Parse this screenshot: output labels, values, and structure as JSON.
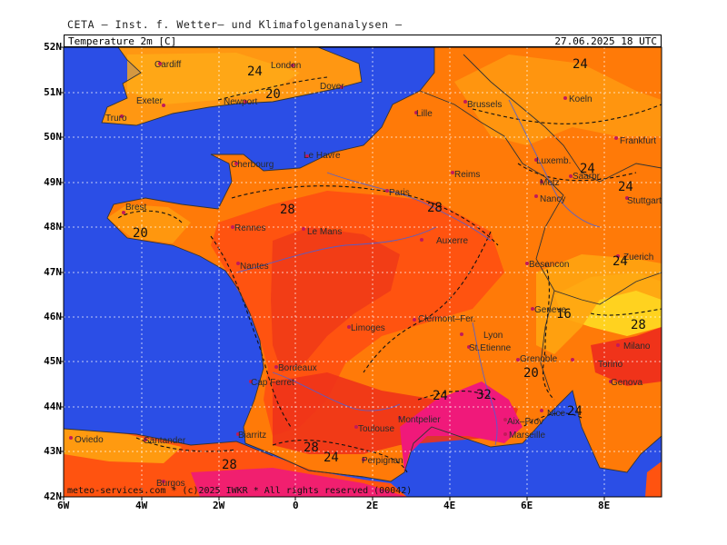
{
  "header": {
    "source": "CETA – Inst. f. Wetter– und Klimafolgenanalysen –",
    "field": "Temperature 2m [C]",
    "valid_time": "27.06.2025 18 UTC"
  },
  "axes": {
    "lat_labels": [
      "52N",
      "51N",
      "50N",
      "49N",
      "48N",
      "47N",
      "46N",
      "45N",
      "44N",
      "43N",
      "42N"
    ],
    "lon_labels": [
      "6W",
      "4W",
      "2W",
      "0",
      "2E",
      "4E",
      "6E",
      "8E"
    ]
  },
  "contour_labels": {
    "c24a": "24",
    "c20a": "20",
    "c24b": "24",
    "c24c": "24",
    "c24d": "24",
    "c28a": "28",
    "c28b": "28",
    "c20b": "20",
    "c24e": "24",
    "c16": "16",
    "c28c": "28",
    "c20c": "20",
    "c24f": "24",
    "c32": "32",
    "c24g": "24",
    "c28d": "28",
    "c24h": "24",
    "c28e": "28"
  },
  "cities": {
    "cardiff": "Cardiff",
    "london": "London",
    "dover": "Dover",
    "exeter": "Exeter",
    "newport": "Newport",
    "truro": "Truro",
    "lille": "Lille",
    "brussels": "Brussels",
    "koeln": "Koeln",
    "frankfurt": "Frankfurt",
    "luxemb": "Luxemb.",
    "saarbr": "Saarbr.",
    "metz": "Metz",
    "nancy": "Nancy",
    "stuttgart": "Stuttgart",
    "zuerich": "Zuerich",
    "lehavre": "Le Havre",
    "cherbourg": "Cherbourg",
    "paris": "Paris",
    "reims": "Reims",
    "brest": "Brest",
    "rennes": "Rennes",
    "lemans": "Le Mans",
    "auxerre": "Auxerre",
    "nantes": "Nantes",
    "besancon": "Besancon",
    "geneve": "Geneve",
    "limoges": "Limoges",
    "clermont": "Clermont–Fer.",
    "lyon": "Lyon",
    "stetienne": "St.Etienne",
    "grenoble": "Grenoble",
    "milano": "Milano",
    "torino": "Torino",
    "bordeaux": "Bordeaux",
    "capferret": "Cap Ferret",
    "genova": "Genova",
    "montpellier": "Montpelier",
    "toulouse": "Toulouse",
    "aixprov": "Aix–Prov",
    "nice": "Nice",
    "marseille": "Marseille",
    "oviedo": "Oviedo",
    "santander": "Santander",
    "biarritz": "Biarritz",
    "perpignan": "Perpignan",
    "burgos": "Burgos"
  },
  "credit": "meteo-services.com * (c)2025 IWKR * All rights reserved (00042)",
  "colors": {
    "sea": "#2b4ee6",
    "temp_16": "#ffd21f",
    "temp_20": "#ffa411",
    "temp_24": "#ff7a08",
    "temp_28": "#ff5310",
    "temp_32": "#f0211e",
    "temp_36": "#f0197a"
  }
}
